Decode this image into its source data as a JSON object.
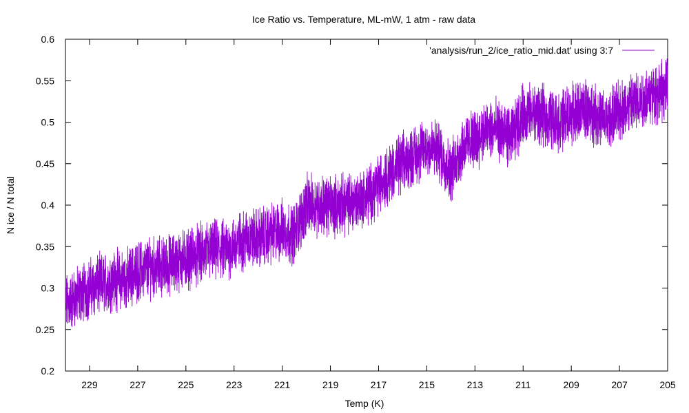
{
  "chart_data": {
    "type": "line",
    "title": "Ice Ratio vs. Temperature, ML-mW, 1 atm - raw data",
    "xlabel": "Temp (K)",
    "ylabel": "N ice / N total",
    "xlim": [
      230,
      205
    ],
    "ylim": [
      0.2,
      0.6
    ],
    "x_reversed": true,
    "x_ticks": [
      229,
      227,
      225,
      223,
      221,
      219,
      217,
      215,
      213,
      211,
      209,
      207,
      205
    ],
    "y_ticks": [
      0.2,
      0.25,
      0.3,
      0.35,
      0.4,
      0.45,
      0.5,
      0.55,
      0.6
    ],
    "y_tick_labels": [
      "0.2",
      "0.25",
      "0.3",
      "0.35",
      "0.4",
      "0.45",
      "0.5",
      "0.55",
      "0.6"
    ],
    "legend_position": "top-right",
    "series": [
      {
        "name": "'analysis/run_2/ice_ratio_mid.dat' using 3:7",
        "color": "#9400d3",
        "x": [
          230,
          229.5,
          229,
          228.5,
          228,
          227.5,
          227,
          226.5,
          226,
          225.5,
          225,
          224.5,
          224,
          223.5,
          223,
          222.5,
          222,
          221.5,
          221,
          220.5,
          220,
          219.5,
          219,
          218.5,
          218,
          217.5,
          217,
          216.5,
          216,
          215.5,
          215,
          214.5,
          214,
          213.5,
          213,
          212.5,
          212,
          211.5,
          211,
          210.5,
          210,
          209.5,
          209,
          208.5,
          208,
          207.5,
          207,
          206.5,
          206,
          205.5,
          205
        ],
        "y": [
          0.28,
          0.29,
          0.3,
          0.305,
          0.31,
          0.31,
          0.32,
          0.325,
          0.325,
          0.33,
          0.335,
          0.34,
          0.345,
          0.345,
          0.35,
          0.36,
          0.36,
          0.365,
          0.37,
          0.365,
          0.4,
          0.4,
          0.4,
          0.4,
          0.405,
          0.41,
          0.425,
          0.44,
          0.45,
          0.46,
          0.47,
          0.465,
          0.44,
          0.47,
          0.48,
          0.49,
          0.49,
          0.48,
          0.51,
          0.51,
          0.505,
          0.5,
          0.51,
          0.515,
          0.51,
          0.5,
          0.515,
          0.52,
          0.53,
          0.535,
          0.54
        ]
      }
    ]
  }
}
